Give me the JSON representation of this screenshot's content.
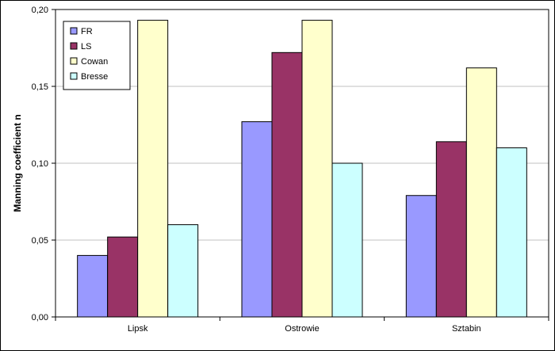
{
  "chart_data": {
    "type": "bar",
    "title": "",
    "xlabel": "",
    "ylabel": "Manning coefficient n",
    "categories": [
      "Lipsk",
      "Ostrowie",
      "Sztabin"
    ],
    "series": [
      {
        "name": "FR",
        "values": [
          0.04,
          0.127,
          0.079
        ],
        "color": "#9999ff"
      },
      {
        "name": "LS",
        "values": [
          0.052,
          0.172,
          0.114
        ],
        "color": "#993366"
      },
      {
        "name": "Cowan",
        "values": [
          0.193,
          0.193,
          0.162
        ],
        "color": "#ffffcc"
      },
      {
        "name": "Bresse",
        "values": [
          0.06,
          0.1,
          0.11
        ],
        "color": "#ccffff"
      }
    ],
    "ylim": [
      0,
      0.2
    ],
    "yticks": [
      0,
      0.05,
      0.1,
      0.15,
      0.2
    ],
    "ytick_labels": [
      "0,00",
      "0,05",
      "0,10",
      "0,15",
      "0,20"
    ],
    "grid": true,
    "legend_position": "top-left"
  }
}
